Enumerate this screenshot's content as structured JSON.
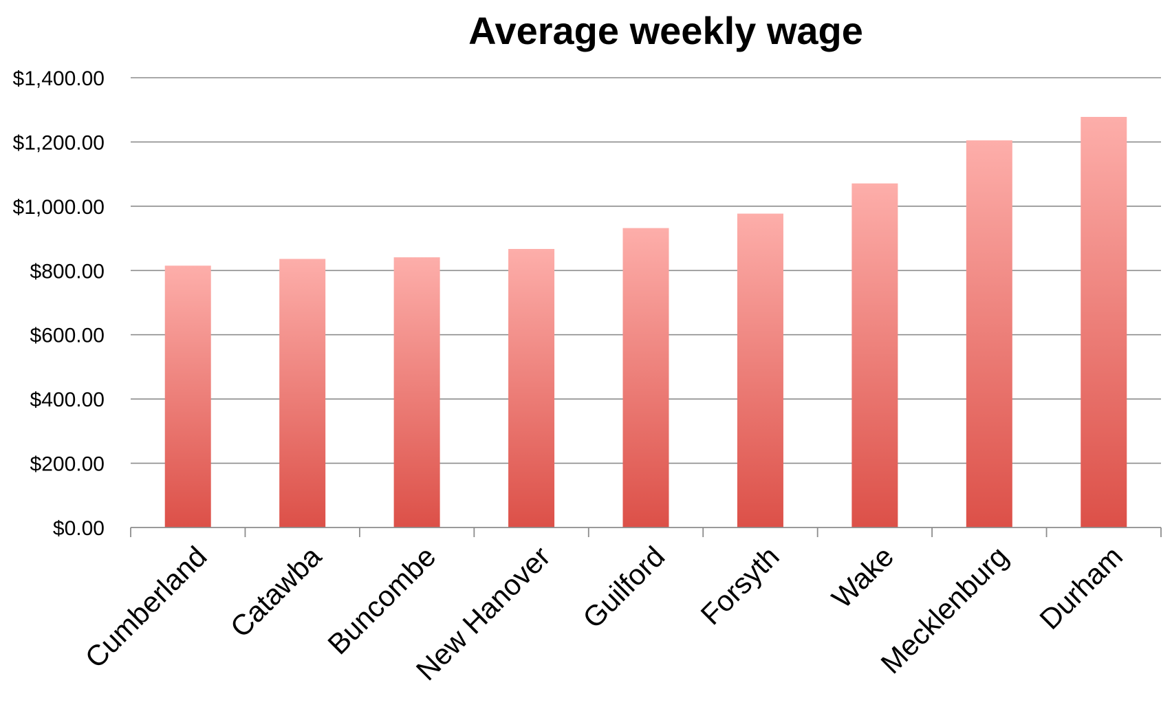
{
  "chart_data": {
    "type": "bar",
    "title": "Average weekly wage",
    "xlabel": "",
    "ylabel": "",
    "categories": [
      "Cumberland",
      "Catawba",
      "Buncombe",
      "New Hanover",
      "Guilford",
      "Forsyth",
      "Wake",
      "Mecklenburg",
      "Durham"
    ],
    "values": [
      815,
      836,
      841,
      867,
      932,
      977,
      1071,
      1205,
      1278
    ],
    "ylim": [
      0,
      1400
    ],
    "yticks": [
      0,
      200,
      400,
      600,
      800,
      1000,
      1200,
      1400
    ],
    "ytick_labels": [
      "$0.00",
      "$200.00",
      "$400.00",
      "$600.00",
      "$800.00",
      "$1,000.00",
      "$1,200.00",
      "$1,400.00"
    ],
    "grid": true,
    "legend": "none",
    "colors": {
      "bar_top": "#fdaeaa",
      "bar_bottom": "#dc5048",
      "grid": "#8c8c8c",
      "text": "#000000"
    }
  }
}
